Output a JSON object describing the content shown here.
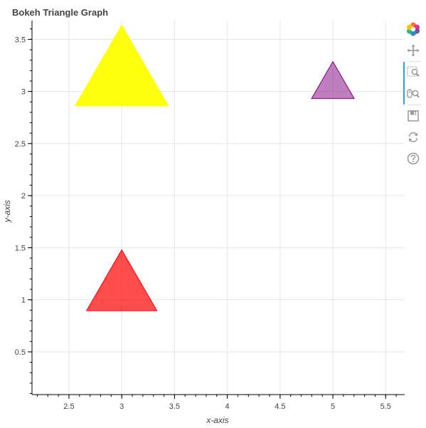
{
  "chart_data": {
    "type": "scatter",
    "title": "Bokeh Triangle Graph",
    "xlabel": "x-axis",
    "ylabel": "y-axis",
    "xlim": [
      2.15,
      5.68
    ],
    "ylim": [
      0.09,
      3.68
    ],
    "x_ticks": [
      "2.5",
      "3",
      "3.5",
      "4",
      "4.5",
      "5",
      "5.5"
    ],
    "y_ticks": [
      "0.5",
      "1",
      "1.5",
      "2",
      "2.5",
      "3",
      "3.5"
    ],
    "grid": true,
    "markers": [
      {
        "x": 3,
        "y": 3.12,
        "size": "large",
        "fill": "#ffff00",
        "stroke": "#ffff00",
        "fill_alpha": 0.95
      },
      {
        "x": 5,
        "y": 3.05,
        "size": "small",
        "fill": "#800080",
        "stroke": "#800080",
        "fill_alpha": 0.5
      },
      {
        "x": 3,
        "y": 1.09,
        "size": "medium",
        "fill": "#ff0000",
        "stroke": "#ff0000",
        "fill_alpha": 0.7
      }
    ]
  },
  "toolbar": {
    "tools": [
      {
        "name": "bokeh-logo-icon",
        "active": false
      },
      {
        "name": "pan-icon",
        "active": false
      },
      {
        "name": "box-zoom-icon",
        "active": true
      },
      {
        "name": "wheel-zoom-icon",
        "active": true
      },
      {
        "name": "save-icon",
        "active": false
      },
      {
        "name": "reset-icon",
        "active": false
      },
      {
        "name": "help-icon",
        "active": false
      }
    ]
  }
}
